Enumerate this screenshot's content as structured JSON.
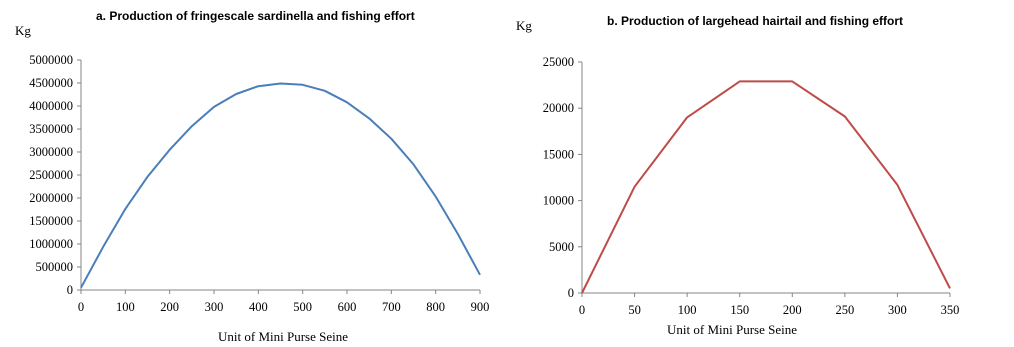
{
  "chart_data": [
    {
      "type": "line",
      "title": "a. Production of fringescale sardinella and fishing effort",
      "ylabel": "Kg",
      "xlabel": "Unit of Mini Purse Seine",
      "xlim": [
        0,
        900
      ],
      "ylim": [
        0,
        5000000
      ],
      "x_ticks": [
        0,
        100,
        200,
        300,
        400,
        500,
        600,
        700,
        800,
        900
      ],
      "y_ticks": [
        0,
        500000,
        1000000,
        1500000,
        2000000,
        2500000,
        3000000,
        3500000,
        4000000,
        4500000,
        5000000
      ],
      "grid": false,
      "color": "#4a7ebb",
      "series": [
        {
          "x": [
            0,
            50,
            100,
            150,
            200,
            250,
            300,
            350,
            400,
            450,
            500,
            550,
            600,
            650,
            700,
            750,
            800,
            850,
            900
          ],
          "values": [
            50000,
            940000,
            1760000,
            2460000,
            3050000,
            3560000,
            3980000,
            4260000,
            4430000,
            4490000,
            4460000,
            4330000,
            4080000,
            3730000,
            3290000,
            2730000,
            2030000,
            1220000,
            330000
          ]
        }
      ]
    },
    {
      "type": "line",
      "title": "b. Production of largehead hairtail and fishing effort",
      "ylabel": "Kg",
      "xlabel": "Unit of Mini Purse Seine",
      "xlim": [
        0,
        350
      ],
      "ylim": [
        0,
        25000
      ],
      "x_ticks": [
        0,
        50,
        100,
        150,
        200,
        250,
        300,
        350
      ],
      "y_ticks": [
        0,
        5000,
        10000,
        15000,
        20000,
        25000
      ],
      "grid": false,
      "color": "#be4b48",
      "series": [
        {
          "x": [
            0,
            50,
            100,
            150,
            200,
            250,
            300,
            350
          ],
          "values": [
            0,
            11500,
            19000,
            22900,
            22900,
            19100,
            11700,
            500
          ]
        }
      ]
    }
  ]
}
